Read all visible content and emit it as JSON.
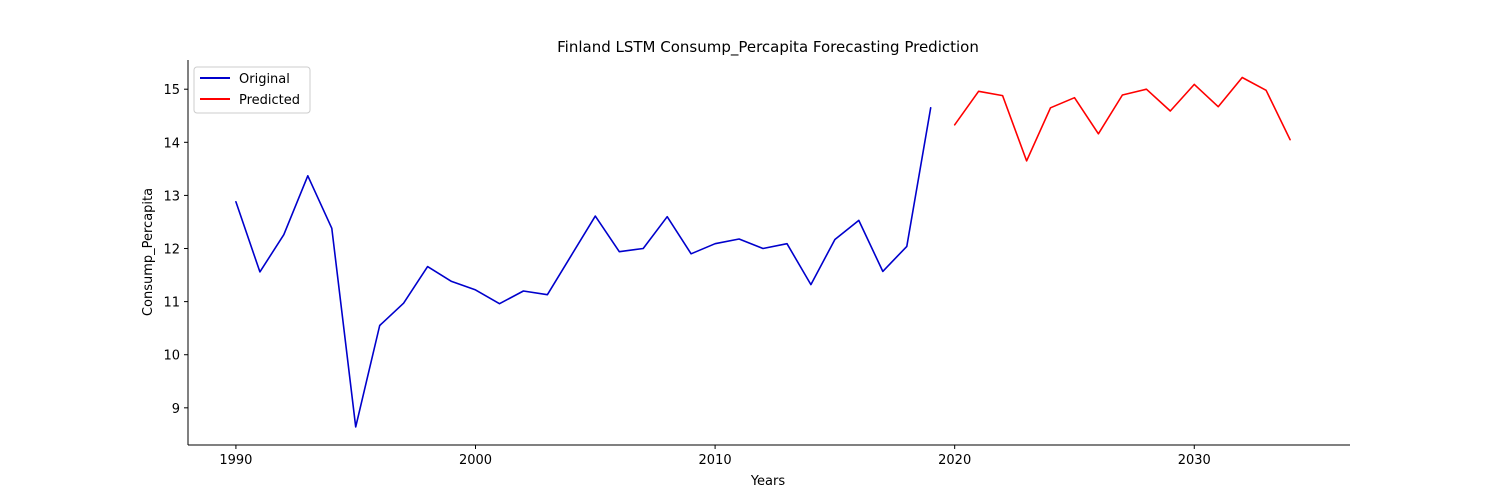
{
  "chart_data": {
    "type": "line",
    "title": "Finland LSTM Consump_Percapita Forecasting Prediction",
    "xlabel": "Years",
    "ylabel": "Consump_Percapita",
    "xlim": [
      1988,
      2036.5
    ],
    "ylim": [
      8.3,
      15.55
    ],
    "xticks": [
      1990,
      2000,
      2010,
      2020,
      2030
    ],
    "yticks": [
      9,
      10,
      11,
      12,
      13,
      14,
      15
    ],
    "grid": false,
    "legend_position": "top-left",
    "series": [
      {
        "name": "Original",
        "color": "#0000cc",
        "x": [
          1990,
          1991,
          1992,
          1993,
          1994,
          1995,
          1996,
          1997,
          1998,
          1999,
          2000,
          2001,
          2002,
          2003,
          2004,
          2005,
          2006,
          2007,
          2008,
          2009,
          2010,
          2011,
          2012,
          2013,
          2014,
          2015,
          2016,
          2017,
          2018,
          2019
        ],
        "y": [
          12.88,
          11.56,
          12.26,
          13.37,
          12.38,
          8.64,
          10.55,
          10.97,
          11.66,
          11.38,
          11.22,
          10.96,
          11.2,
          11.13,
          11.87,
          12.61,
          11.94,
          12.0,
          12.6,
          11.9,
          12.09,
          12.18,
          12.0,
          12.09,
          11.32,
          12.17,
          12.53,
          11.57,
          12.04,
          14.65
        ]
      },
      {
        "name": "Predicted",
        "color": "#ff0000",
        "x": [
          2020,
          2021,
          2022,
          2023,
          2024,
          2025,
          2026,
          2027,
          2028,
          2029,
          2030,
          2031,
          2032,
          2033,
          2034
        ],
        "y": [
          14.33,
          14.96,
          14.88,
          13.65,
          14.65,
          14.84,
          14.16,
          14.89,
          15.0,
          14.59,
          15.09,
          14.67,
          15.22,
          14.98,
          14.05
        ]
      }
    ]
  }
}
